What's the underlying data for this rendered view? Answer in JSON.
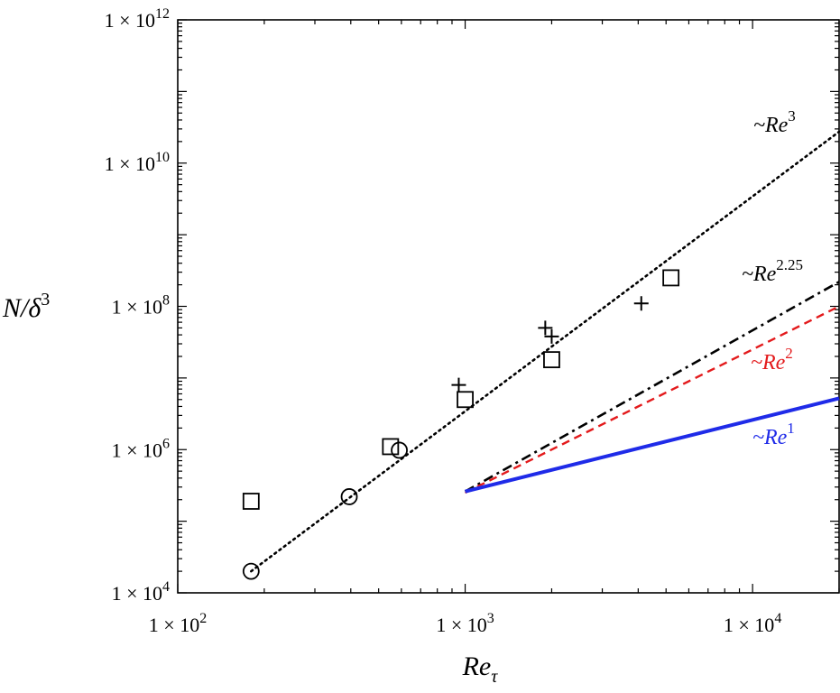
{
  "chart_data": {
    "type": "scatter",
    "x_scale": "log",
    "y_scale": "log",
    "xlim": [
      100,
      20000
    ],
    "ylim": [
      10000,
      1000000000000
    ],
    "grid": false,
    "xlabel": {
      "base": "Re",
      "sub": "τ"
    },
    "ylabel": {
      "base": "N/δ",
      "sup": "3"
    },
    "x_ticks": [
      {
        "value": 100,
        "mant": "1 × 10",
        "exp": "2"
      },
      {
        "value": 1000,
        "mant": "1 × 10",
        "exp": "3"
      },
      {
        "value": 10000,
        "mant": "1 × 10",
        "exp": "4"
      }
    ],
    "y_ticks": [
      {
        "value": 10000,
        "mant": "1 × 10",
        "exp": "4"
      },
      {
        "value": 1000000,
        "mant": "1 × 10",
        "exp": "6"
      },
      {
        "value": 100000000,
        "mant": "1 × 10",
        "exp": "8"
      },
      {
        "value": 10000000000,
        "mant": "1 × 10",
        "exp": "10"
      },
      {
        "value": 1000000000000,
        "mant": "1 × 10",
        "exp": "12"
      }
    ],
    "series": [
      {
        "marker": "circle",
        "points": [
          [
            180,
            20000
          ],
          [
            395,
            220000
          ],
          [
            590,
            980000
          ]
        ]
      },
      {
        "marker": "square",
        "points": [
          [
            180,
            190000
          ],
          [
            550,
            1100000
          ],
          [
            1000,
            5000000
          ],
          [
            2000,
            18000000
          ],
          [
            5200,
            250000000
          ]
        ]
      },
      {
        "marker": "plus",
        "points": [
          [
            950,
            8000000
          ],
          [
            1900,
            50000000
          ],
          [
            2000,
            38000000
          ],
          [
            4100,
            110000000
          ]
        ]
      }
    ],
    "trend_lines": [
      {
        "label_base": "~Re",
        "label_exp": "3",
        "exponent": 3,
        "x": [
          180,
          20000
        ],
        "y0": 20000,
        "color": "#000000",
        "style": "dotted"
      },
      {
        "label_base": "~Re",
        "label_exp": "2.25",
        "exponent": 2.25,
        "x": [
          1000,
          20000
        ],
        "y0": 260000,
        "color": "#000000",
        "style": "dashdot"
      },
      {
        "label_base": "~Re",
        "label_exp": "2",
        "exponent": 2,
        "x": [
          1000,
          20000
        ],
        "y0": 250000,
        "color": "#e31a1c",
        "style": "dashed"
      },
      {
        "label_base": "~Re",
        "label_exp": "1",
        "exponent": 1,
        "x": [
          1000,
          20000
        ],
        "y0": 260000,
        "color": "#1f2be8",
        "style": "solid"
      }
    ]
  }
}
